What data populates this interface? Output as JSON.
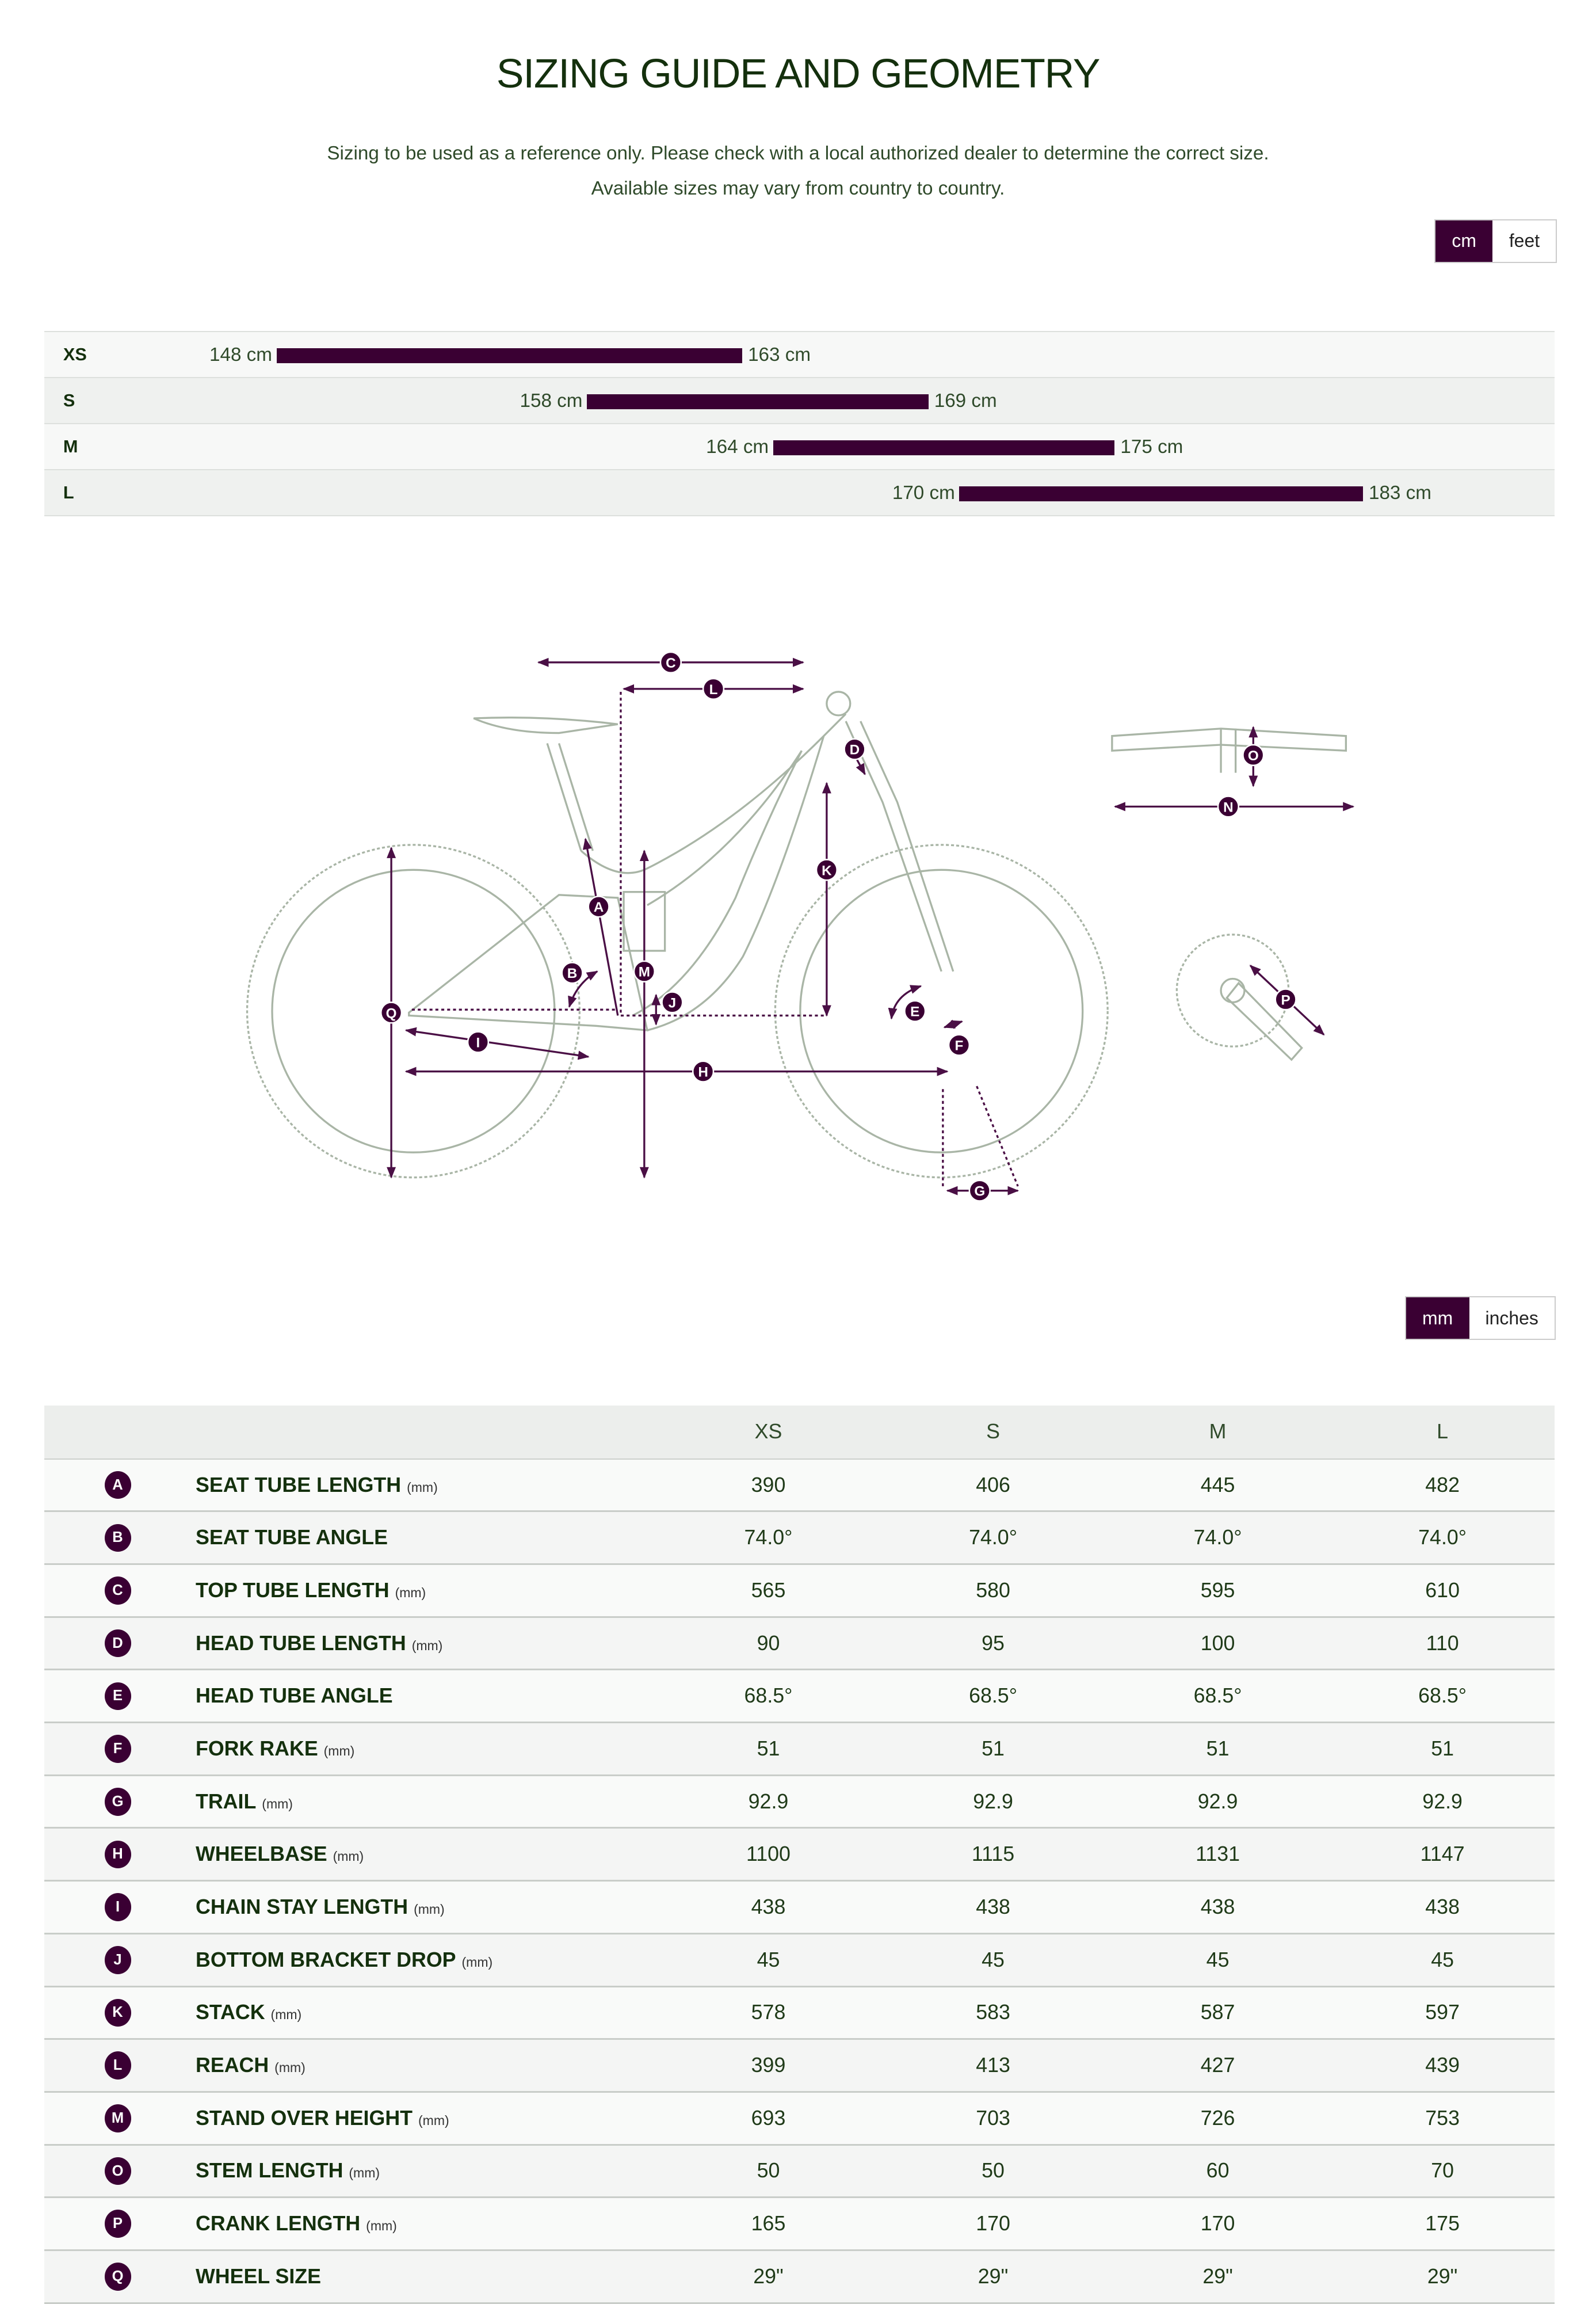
{
  "title": "SIZING GUIDE AND GEOMETRY",
  "subtitle_lines": [
    "Sizing to be used as a reference only. Please check with a local authorized dealer to determine the correct size.",
    "Available sizes may vary from country to country."
  ],
  "height_unit_toggle": {
    "options": [
      "cm",
      "feet"
    ],
    "selected": "cm"
  },
  "rider_heights": [
    {
      "size": "XS",
      "min": 148,
      "max": 163,
      "min_label": "148 cm",
      "max_label": "163 cm"
    },
    {
      "size": "S",
      "min": 158,
      "max": 169,
      "min_label": "158 cm",
      "max_label": "169 cm"
    },
    {
      "size": "M",
      "min": 164,
      "max": 175,
      "min_label": "164 cm",
      "max_label": "175 cm"
    },
    {
      "size": "L",
      "min": 170,
      "max": 183,
      "min_label": "170 cm",
      "max_label": "183 cm"
    }
  ],
  "diagram_labels": [
    "A",
    "B",
    "C",
    "D",
    "E",
    "F",
    "G",
    "H",
    "I",
    "J",
    "K",
    "L",
    "M",
    "N",
    "O",
    "P",
    "Q"
  ],
  "geometry_unit_toggle": {
    "options": [
      "mm",
      "inches"
    ],
    "selected": "mm"
  },
  "geometry": {
    "columns": [
      "XS",
      "S",
      "M",
      "L"
    ],
    "rows": [
      {
        "letter": "A",
        "name": "SEAT TUBE LENGTH",
        "unit": "(mm)",
        "values": [
          "390",
          "406",
          "445",
          "482"
        ]
      },
      {
        "letter": "B",
        "name": "SEAT TUBE ANGLE",
        "unit": "",
        "values": [
          "74.0°",
          "74.0°",
          "74.0°",
          "74.0°"
        ]
      },
      {
        "letter": "C",
        "name": "TOP TUBE LENGTH",
        "unit": "(mm)",
        "values": [
          "565",
          "580",
          "595",
          "610"
        ]
      },
      {
        "letter": "D",
        "name": "HEAD TUBE LENGTH",
        "unit": "(mm)",
        "values": [
          "90",
          "95",
          "100",
          "110"
        ]
      },
      {
        "letter": "E",
        "name": "HEAD TUBE ANGLE",
        "unit": "",
        "values": [
          "68.5°",
          "68.5°",
          "68.5°",
          "68.5°"
        ]
      },
      {
        "letter": "F",
        "name": "FORK RAKE",
        "unit": "(mm)",
        "values": [
          "51",
          "51",
          "51",
          "51"
        ]
      },
      {
        "letter": "G",
        "name": "TRAIL",
        "unit": "(mm)",
        "values": [
          "92.9",
          "92.9",
          "92.9",
          "92.9"
        ]
      },
      {
        "letter": "H",
        "name": "WHEELBASE",
        "unit": "(mm)",
        "values": [
          "1100",
          "1115",
          "1131",
          "1147"
        ]
      },
      {
        "letter": "I",
        "name": "CHAIN STAY LENGTH",
        "unit": "(mm)",
        "values": [
          "438",
          "438",
          "438",
          "438"
        ]
      },
      {
        "letter": "J",
        "name": "BOTTOM BRACKET DROP",
        "unit": "(mm)",
        "values": [
          "45",
          "45",
          "45",
          "45"
        ]
      },
      {
        "letter": "K",
        "name": "STACK",
        "unit": "(mm)",
        "values": [
          "578",
          "583",
          "587",
          "597"
        ]
      },
      {
        "letter": "L",
        "name": "REACH",
        "unit": "(mm)",
        "values": [
          "399",
          "413",
          "427",
          "439"
        ]
      },
      {
        "letter": "M",
        "name": "STAND OVER HEIGHT",
        "unit": "(mm)",
        "values": [
          "693",
          "703",
          "726",
          "753"
        ]
      },
      {
        "letter": "O",
        "name": "STEM LENGTH",
        "unit": "(mm)",
        "values": [
          "50",
          "50",
          "60",
          "70"
        ]
      },
      {
        "letter": "P",
        "name": "CRANK LENGTH",
        "unit": "(mm)",
        "values": [
          "165",
          "170",
          "170",
          "175"
        ]
      },
      {
        "letter": "Q",
        "name": "WHEEL SIZE",
        "unit": "",
        "values": [
          "29\"",
          "29\"",
          "29\"",
          "29\""
        ]
      }
    ]
  },
  "colors": {
    "accent": "#3a0033",
    "heading": "#14300d",
    "line_art": "#a9b5a6"
  }
}
